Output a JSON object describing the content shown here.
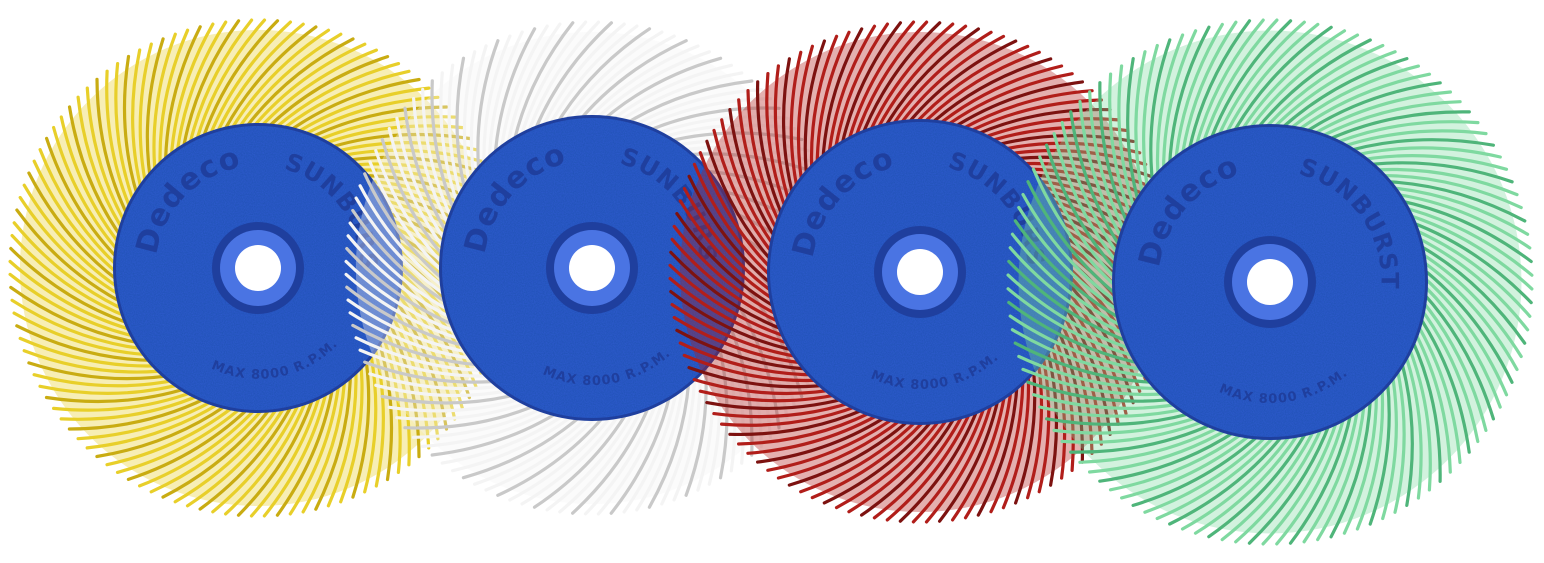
{
  "scene": {
    "background": "#ffffff",
    "hub_color": "#2f5bd0",
    "hub_shadow": "#1f3f9e",
    "hub_highlight": "#4a74e3",
    "hole_color": "#ffffff"
  },
  "wheels": [
    {
      "name": "yellow",
      "bristle_color": "#e8cf2a",
      "bristle_shadow": "#c9ac12",
      "brand": "Dedeco",
      "product": "SUNBURST",
      "rim_text": "MAX 8000 R.P.M."
    },
    {
      "name": "white",
      "bristle_color": "#f4f4f4",
      "bristle_shadow": "#c9c9c9",
      "brand": "Dedeco",
      "product": "SUNBURST",
      "rim_text": "MAX 8000 R.P.M."
    },
    {
      "name": "red",
      "bristle_color": "#b11e1a",
      "bristle_shadow": "#7d1210",
      "brand": "Dedeco",
      "product": "SUNBURST",
      "rim_text": "MAX 8000 R.P.M."
    },
    {
      "name": "green",
      "bristle_color": "#7fd9a0",
      "bristle_shadow": "#4fb57a",
      "brand": "Dedeco",
      "product": "SUNBURST",
      "rim_text": "MAX 8000 R.P.M."
    }
  ]
}
